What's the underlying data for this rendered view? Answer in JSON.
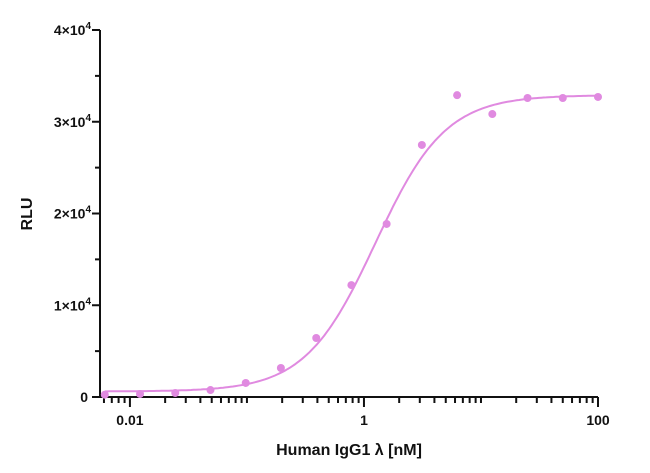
{
  "chart_data": {
    "type": "scatter",
    "title": "",
    "xlabel": "Human IgG1 λ [nM]",
    "ylabel": "RLU",
    "xscale": "log",
    "xlim": [
      0.00555,
      100
    ],
    "ylim": [
      0,
      40000
    ],
    "grid": false,
    "legend": null,
    "color": "#e08ae0",
    "x_ticks": [
      {
        "value": 0.01,
        "label": "0.01"
      },
      {
        "value": 1,
        "label": "1"
      },
      {
        "value": 100,
        "label": "100"
      }
    ],
    "y_ticks": [
      {
        "value": 0,
        "label": "0",
        "exp": ""
      },
      {
        "value": 10000,
        "label": "1×10",
        "exp": "4"
      },
      {
        "value": 20000,
        "label": "2×10",
        "exp": "4"
      },
      {
        "value": 30000,
        "label": "3×10",
        "exp": "4"
      },
      {
        "value": 40000,
        "label": "4×10",
        "exp": "4"
      }
    ],
    "series": [
      {
        "name": "Human IgG1 λ",
        "x": [
          0.0061,
          0.0122,
          0.0244,
          0.0488,
          0.0977,
          0.195,
          0.391,
          0.781,
          1.5625,
          3.125,
          6.25,
          12.5,
          25,
          50,
          100
        ],
        "y": [
          250,
          330,
          440,
          760,
          1530,
          3160,
          6430,
          12200,
          18860,
          27470,
          32900,
          30840,
          32590,
          32590,
          32700
        ]
      }
    ],
    "fit": {
      "model": "4PL sigmoid",
      "bottom": 600,
      "top": 32900,
      "ec50": 1.25,
      "hill": 1.45
    }
  }
}
